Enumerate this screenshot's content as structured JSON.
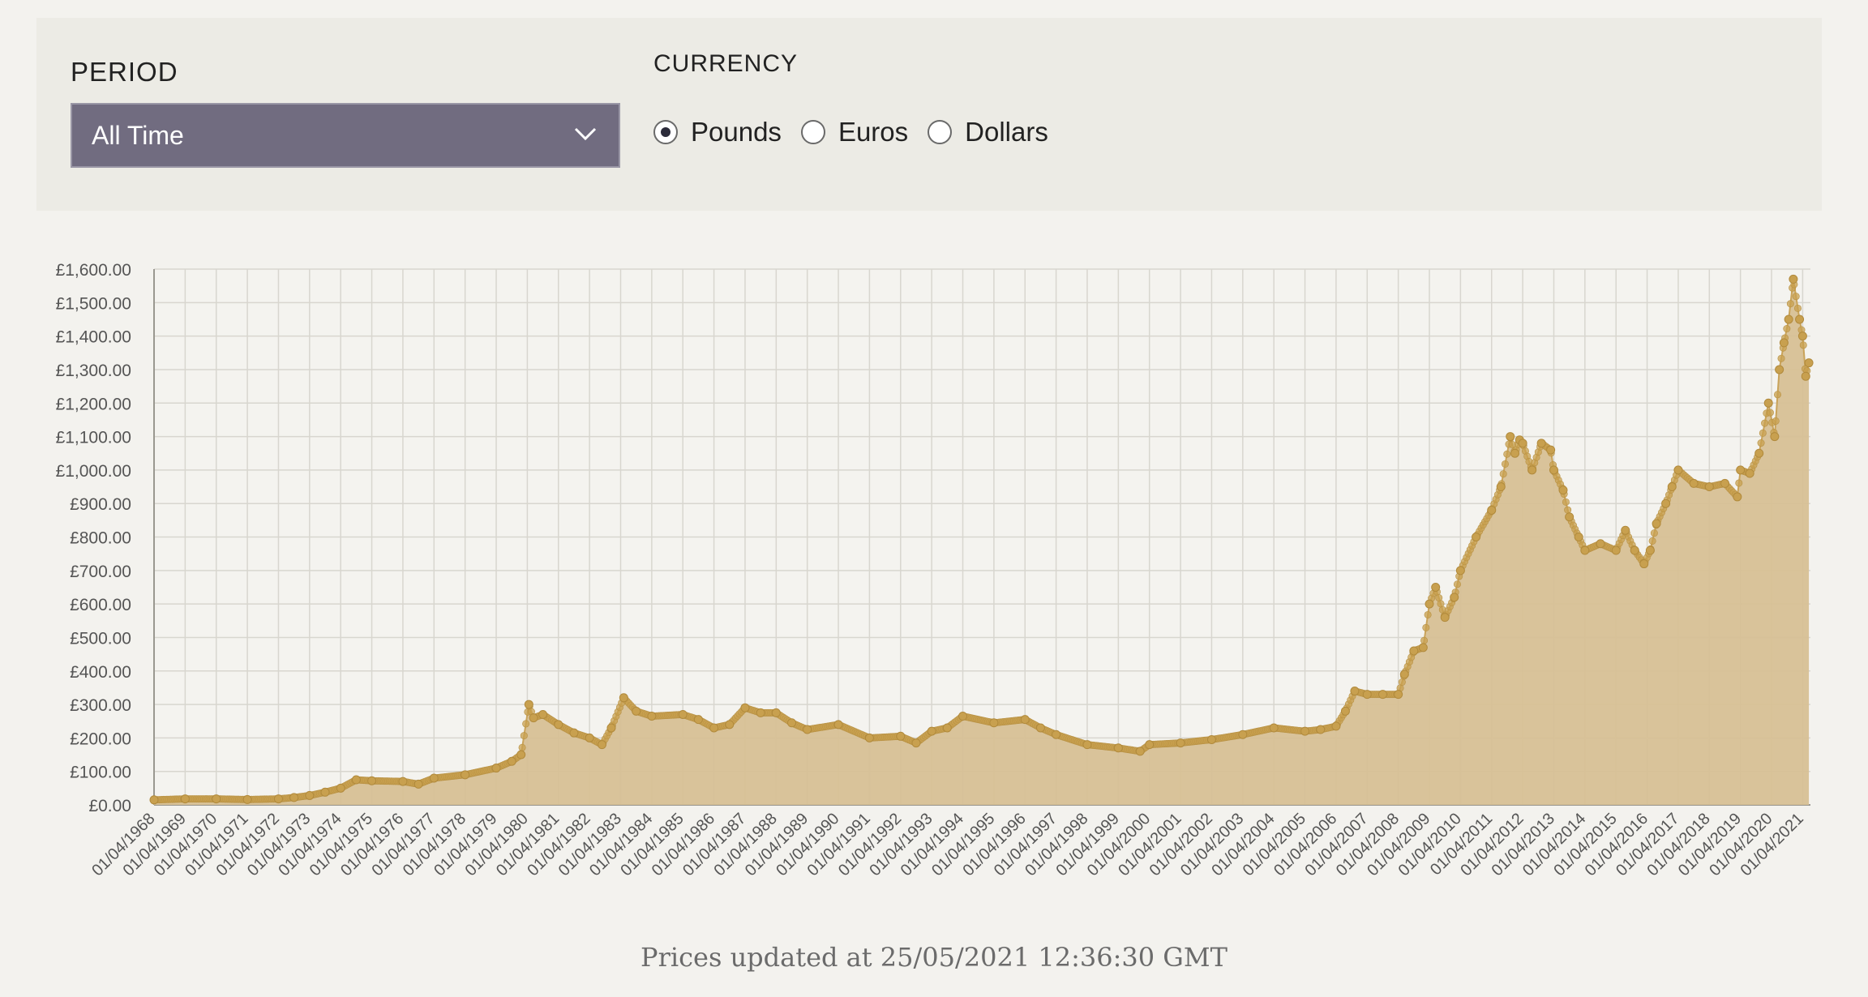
{
  "controls": {
    "period_label": "PERIOD",
    "period_value": "All Time",
    "currency_label": "CURRENCY",
    "currencies": [
      {
        "label": "Pounds",
        "selected": true
      },
      {
        "label": "Euros",
        "selected": false
      },
      {
        "label": "Dollars",
        "selected": false
      }
    ]
  },
  "footer": {
    "updated": "Prices updated at 25/05/2021 12:36:30 GMT"
  },
  "colors": {
    "fill": "#d7c095",
    "line": "#c9a35a",
    "point": "#c8a04f",
    "panel": "#ecebe5",
    "select": "#716c80"
  },
  "icons": {
    "select_arrow": "chevron-down-icon"
  },
  "chart_data": {
    "type": "area",
    "title": "",
    "xlabel": "",
    "ylabel": "",
    "ylim": [
      0,
      1600
    ],
    "yticks": [
      "£0.00",
      "£100.00",
      "£200.00",
      "£300.00",
      "£400.00",
      "£500.00",
      "£600.00",
      "£700.00",
      "£800.00",
      "£900.00",
      "£1,000.00",
      "£1,100.00",
      "£1,200.00",
      "£1,300.00",
      "£1,400.00",
      "£1,500.00",
      "£1,600.00"
    ],
    "xticks": [
      "01/04/1968",
      "01/04/1969",
      "01/04/1970",
      "01/04/1971",
      "01/04/1972",
      "01/04/1973",
      "01/04/1974",
      "01/04/1975",
      "01/04/1976",
      "01/04/1977",
      "01/04/1978",
      "01/04/1979",
      "01/04/1980",
      "01/04/1981",
      "01/04/1982",
      "01/04/1983",
      "01/04/1984",
      "01/04/1985",
      "01/04/1986",
      "01/04/1987",
      "01/04/1988",
      "01/04/1989",
      "01/04/1990",
      "01/04/1991",
      "01/04/1992",
      "01/04/1993",
      "01/04/1994",
      "01/04/1995",
      "01/04/1996",
      "01/04/1997",
      "01/04/1998",
      "01/04/1999",
      "01/04/2000",
      "01/04/2001",
      "01/04/2002",
      "01/04/2003",
      "01/04/2004",
      "01/04/2005",
      "01/04/2006",
      "01/04/2007",
      "01/04/2008",
      "01/04/2009",
      "01/04/2010",
      "01/04/2011",
      "01/04/2012",
      "01/04/2013",
      "01/04/2014",
      "01/04/2015",
      "01/04/2016",
      "01/04/2017",
      "01/04/2018",
      "01/04/2019",
      "01/04/2020",
      "01/04/2021"
    ],
    "grid": true,
    "legend": "none",
    "series": [
      {
        "x": [
          1968.0,
          1969.0,
          1970.0,
          1971.0,
          1972.0,
          1972.5,
          1973.0,
          1973.5,
          1974.0,
          1974.5,
          1975.0,
          1976.0,
          1976.5,
          1977.0,
          1978.0,
          1979.0,
          1979.5,
          1979.8,
          1980.05,
          1980.2,
          1980.5,
          1981.0,
          1981.5,
          1982.0,
          1982.4,
          1982.7,
          1983.1,
          1983.5,
          1984.0,
          1985.0,
          1985.5,
          1986.0,
          1986.5,
          1987.0,
          1987.5,
          1988.0,
          1988.5,
          1989.0,
          1990.0,
          1991.0,
          1992.0,
          1992.5,
          1993.0,
          1993.5,
          1994.0,
          1995.0,
          1996.0,
          1996.5,
          1997.0,
          1998.0,
          1999.0,
          1999.7,
          2000.0,
          2001.0,
          2002.0,
          2003.0,
          2004.0,
          2005.0,
          2005.5,
          2006.0,
          2006.3,
          2006.6,
          2007.0,
          2007.5,
          2008.0,
          2008.2,
          2008.5,
          2008.8,
          2009.0,
          2009.2,
          2009.5,
          2009.8,
          2010.0,
          2010.5,
          2011.0,
          2011.3,
          2011.6,
          2011.75,
          2011.9,
          2012.0,
          2012.3,
          2012.6,
          2012.9,
          2013.0,
          2013.3,
          2013.5,
          2013.8,
          2014.0,
          2014.5,
          2015.0,
          2015.3,
          2015.6,
          2015.9,
          2016.1,
          2016.3,
          2016.6,
          2016.8,
          2017.0,
          2017.5,
          2018.0,
          2018.5,
          2018.9,
          2019.0,
          2019.3,
          2019.6,
          2019.9,
          2020.1,
          2020.25,
          2020.4,
          2020.55,
          2020.7,
          2020.9,
          2021.0,
          2021.1,
          2021.2
        ],
        "values": [
          15,
          18,
          18,
          16,
          18,
          22,
          28,
          38,
          50,
          75,
          72,
          70,
          62,
          80,
          90,
          110,
          130,
          150,
          300,
          260,
          270,
          240,
          215,
          200,
          180,
          230,
          320,
          280,
          265,
          270,
          255,
          230,
          240,
          290,
          275,
          275,
          245,
          225,
          240,
          200,
          205,
          185,
          220,
          230,
          265,
          245,
          255,
          230,
          210,
          180,
          170,
          160,
          180,
          185,
          195,
          210,
          230,
          220,
          225,
          235,
          280,
          340,
          330,
          330,
          330,
          390,
          460,
          470,
          600,
          650,
          560,
          620,
          700,
          800,
          880,
          950,
          1100,
          1050,
          1090,
          1080,
          1000,
          1080,
          1060,
          1000,
          940,
          860,
          800,
          760,
          780,
          760,
          820,
          760,
          720,
          760,
          840,
          900,
          950,
          1000,
          960,
          950,
          960,
          920,
          1000,
          990,
          1050,
          1200,
          1100,
          1300,
          1380,
          1450,
          1570,
          1450,
          1400,
          1280,
          1320
        ]
      }
    ]
  }
}
